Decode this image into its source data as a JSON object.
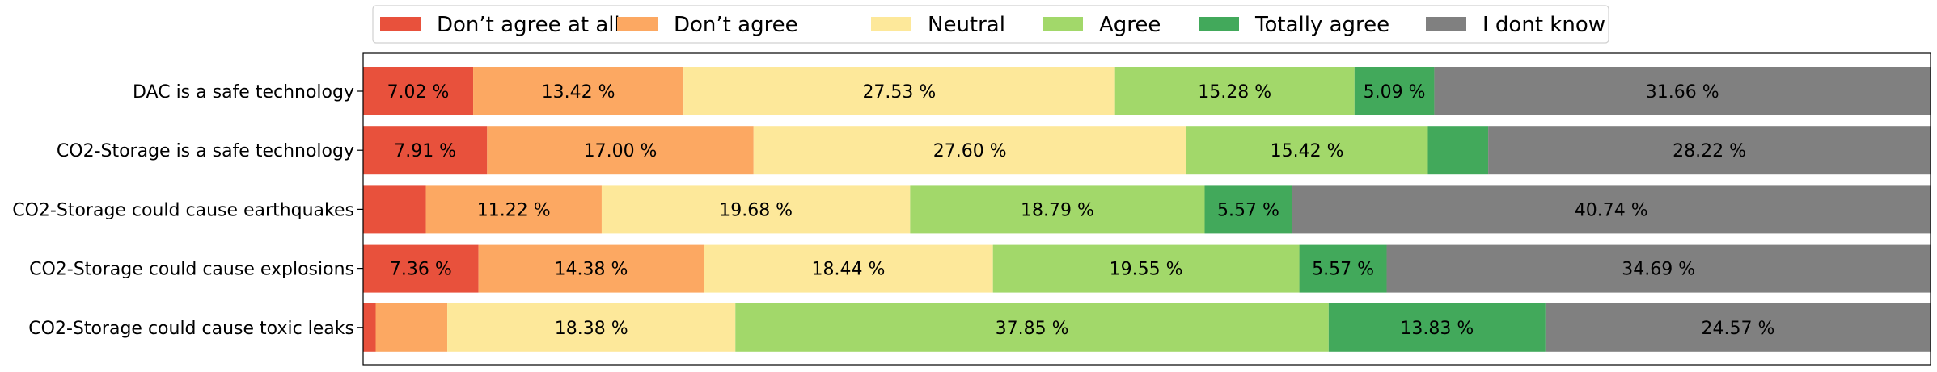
{
  "chart_data": {
    "type": "bar",
    "orientation": "horizontal-stacked-100",
    "categories": [
      "DAC is a safe technology",
      "CO2-Storage is a safe technology",
      "CO2-Storage could cause earthquakes",
      "CO2-Storage could cause explosions",
      "CO2-Storage could cause toxic leaks"
    ],
    "series": [
      {
        "name": "Don’t agree at all",
        "color": "#e8513c",
        "values": [
          7.02,
          7.91,
          4.0,
          7.36,
          0.8
        ],
        "labels": [
          "7.02 %",
          "7.91 %",
          "",
          "7.36 %",
          ""
        ]
      },
      {
        "name": "Don’t agree",
        "color": "#fca862",
        "values": [
          13.42,
          17.0,
          11.22,
          14.38,
          4.57
        ],
        "labels": [
          "13.42 %",
          "17.00 %",
          "11.22 %",
          "14.38 %",
          ""
        ]
      },
      {
        "name": "Neutral",
        "color": "#fde89a",
        "values": [
          27.53,
          27.6,
          19.68,
          18.44,
          18.38
        ],
        "labels": [
          "27.53 %",
          "27.60 %",
          "19.68 %",
          "18.44 %",
          "18.38 %"
        ]
      },
      {
        "name": "Agree",
        "color": "#a2d86a",
        "values": [
          15.28,
          15.42,
          18.79,
          19.55,
          37.85
        ],
        "labels": [
          "15.28 %",
          "15.42 %",
          "18.79 %",
          "19.55 %",
          "37.85 %"
        ]
      },
      {
        "name": "Totally agree",
        "color": "#42a95b",
        "values": [
          5.09,
          3.85,
          5.57,
          5.57,
          13.83
        ],
        "labels": [
          "5.09 %",
          "",
          "5.57 %",
          "5.57 %",
          "13.83 %"
        ]
      },
      {
        "name": "I dont know",
        "color": "#808080",
        "values": [
          31.66,
          28.22,
          40.74,
          34.69,
          24.57
        ],
        "labels": [
          "31.66 %",
          "28.22 %",
          "40.74 %",
          "34.69 %",
          "24.57 %"
        ]
      }
    ],
    "xlim": [
      0,
      100
    ],
    "grid": false,
    "legend_position": "top-center",
    "title": "",
    "xlabel": "",
    "ylabel": ""
  }
}
